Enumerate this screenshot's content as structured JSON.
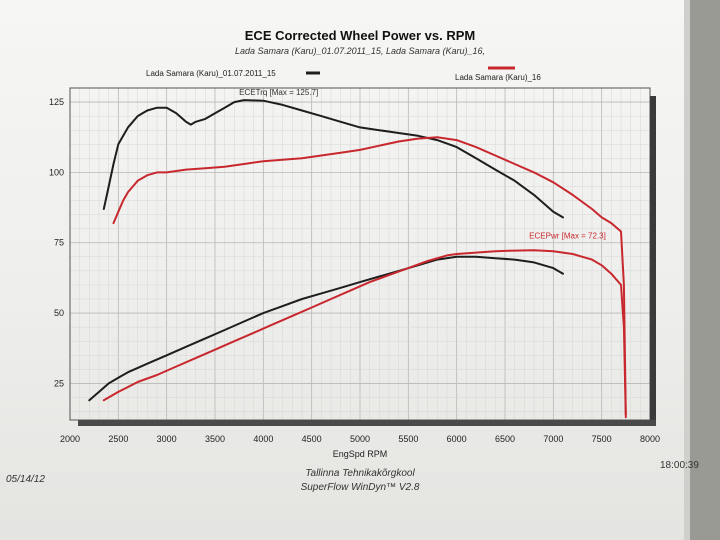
{
  "chart_data": {
    "type": "line",
    "title": "ECE Corrected Wheel Power vs. RPM",
    "subtitle": "Lada Samara (Karu)_01.07.2011_15, Lada Samara (Karu)_16,",
    "xlabel": "EngSpd  RPM",
    "ylabel": "",
    "xlim": [
      2000,
      8000
    ],
    "ylim": [
      12,
      130
    ],
    "x_ticks": [
      "2000",
      "2500",
      "3000",
      "3500",
      "4000",
      "4500",
      "5000",
      "5500",
      "6000",
      "6500",
      "7000",
      "7500",
      "8000"
    ],
    "x_tick_values": [
      2000,
      2500,
      3000,
      3500,
      4000,
      4500,
      5000,
      5500,
      6000,
      6500,
      7000,
      7500,
      8000
    ],
    "y_ticks": [
      "25",
      "50",
      "75",
      "100",
      "125"
    ],
    "y_tick_values": [
      25,
      50,
      75,
      100,
      125
    ],
    "grid": true,
    "legend": [
      {
        "label": "Lada Samara (Karu)_01.07.2011_15",
        "color": "#1e1e1e"
      },
      {
        "label": "Lada Samara (Karu)_16",
        "color": "#c8282d"
      }
    ],
    "annotations": [
      {
        "text": "ECETrq [Max = 125.7]",
        "x": 3750,
        "y": 127.5,
        "color": "#333333"
      },
      {
        "text": "ECEPwr [Max = 72.3]",
        "x": 6750,
        "y": 76.5,
        "color": "#c8282d"
      }
    ],
    "series": [
      {
        "name": "Lada Samara (Karu)_01.07.2011_15 ECETrq",
        "color": "#1e1e1e",
        "x": [
          2350,
          2400,
          2450,
          2500,
          2550,
          2600,
          2650,
          2700,
          2750,
          2800,
          2900,
          3000,
          3100,
          3200,
          3250,
          3300,
          3400,
          3500,
          3600,
          3700,
          3800,
          4000,
          4200,
          4400,
          4600,
          4800,
          5000,
          5200,
          5400,
          5600,
          5800,
          6000,
          6200,
          6400,
          6600,
          6800,
          7000,
          7100
        ],
        "y": [
          87,
          95,
          103,
          110,
          113,
          116,
          118,
          120,
          121,
          122,
          123,
          123,
          121,
          118,
          117,
          118,
          119,
          121,
          123,
          125,
          125.7,
          125.5,
          124,
          122,
          120,
          118,
          116,
          115,
          114,
          113,
          111.5,
          109,
          105,
          101,
          97,
          92,
          86,
          84
        ]
      },
      {
        "name": "Lada Samara (Karu)_16 ECETrq",
        "color": "#c8282d",
        "x": [
          2450,
          2500,
          2550,
          2600,
          2650,
          2700,
          2800,
          2900,
          3000,
          3200,
          3400,
          3600,
          3800,
          4000,
          4200,
          4400,
          4600,
          4800,
          5000,
          5200,
          5400,
          5600,
          5800,
          6000,
          6200,
          6400,
          6600,
          6800,
          7000,
          7200,
          7400,
          7500,
          7600,
          7700,
          7730,
          7750
        ],
        "y": [
          82,
          86,
          90,
          93,
          95,
          97,
          99,
          100,
          100,
          101,
          101.5,
          102,
          103,
          104,
          104.5,
          105,
          106,
          107,
          108,
          109.5,
          111,
          112,
          112.5,
          111.5,
          109,
          106,
          103,
          100,
          96.5,
          92,
          87,
          84,
          82,
          79,
          60,
          14
        ]
      },
      {
        "name": "Lada Samara (Karu)_01.07.2011_15 ECEPwr",
        "color": "#1e1e1e",
        "x": [
          2200,
          2300,
          2400,
          2500,
          2600,
          2700,
          2800,
          3000,
          3200,
          3400,
          3600,
          3800,
          4000,
          4200,
          4400,
          4600,
          4800,
          5000,
          5200,
          5400,
          5600,
          5800,
          6000,
          6200,
          6400,
          6600,
          6800,
          7000,
          7100
        ],
        "y": [
          19,
          22,
          25,
          27,
          29,
          30.5,
          32,
          35,
          38,
          41,
          44,
          47,
          50,
          52.5,
          55,
          57,
          59,
          61,
          63,
          65,
          67,
          69,
          70,
          70,
          69.5,
          69,
          68,
          66,
          64
        ]
      },
      {
        "name": "Lada Samara (Karu)_16 ECEPwr",
        "color": "#c8282d",
        "x": [
          2350,
          2500,
          2700,
          2900,
          3100,
          3300,
          3500,
          3700,
          3900,
          4100,
          4300,
          4500,
          4700,
          4900,
          5100,
          5300,
          5500,
          5700,
          5900,
          6000,
          6200,
          6400,
          6600,
          6800,
          7000,
          7200,
          7400,
          7500,
          7600,
          7700,
          7730,
          7750
        ],
        "y": [
          19,
          22,
          25.5,
          28,
          31,
          34,
          37,
          40,
          43,
          46,
          49,
          52,
          55,
          58,
          61,
          63.5,
          66,
          68.5,
          70.5,
          71,
          71.5,
          72,
          72.2,
          72.3,
          72,
          71,
          69,
          67,
          64,
          60,
          45,
          13
        ]
      }
    ]
  },
  "footer": {
    "date": "05/14/12",
    "line1": "Tallinna Tehnikakõrgkool",
    "line2": "SuperFlow WinDyn™ V2.8",
    "time": "18:00:39"
  }
}
